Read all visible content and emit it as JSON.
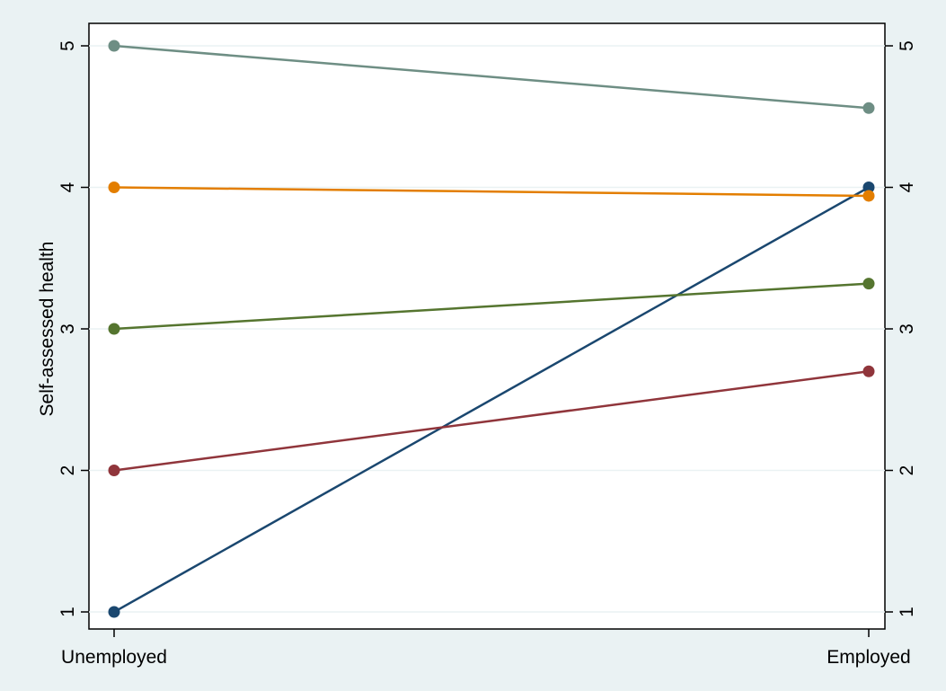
{
  "chart_data": {
    "type": "line",
    "title": "",
    "xlabel": "",
    "ylabel": "Self-assessed health",
    "categories": [
      "Unemployed",
      "Employed"
    ],
    "ylim": [
      1,
      5
    ],
    "yticks": [
      1,
      2,
      3,
      4,
      5
    ],
    "ytick_labels": [
      "1",
      "2",
      "3",
      "4",
      "5"
    ],
    "y_axis_sides": "left-and-right",
    "grid": true,
    "legend": "none",
    "series": [
      {
        "color": "#1a476f",
        "values": [
          1,
          4
        ]
      },
      {
        "color": "#90353b",
        "values": [
          2,
          2.7
        ]
      },
      {
        "color": "#55752f",
        "values": [
          3,
          3.32
        ]
      },
      {
        "color": "#e37e00",
        "values": [
          4,
          3.94
        ]
      },
      {
        "color": "#6e8e84",
        "values": [
          5,
          4.56
        ]
      }
    ]
  },
  "colors": {
    "background": "#eaf2f3",
    "plot_background": "#ffffff",
    "grid": "#eaf2f3"
  }
}
